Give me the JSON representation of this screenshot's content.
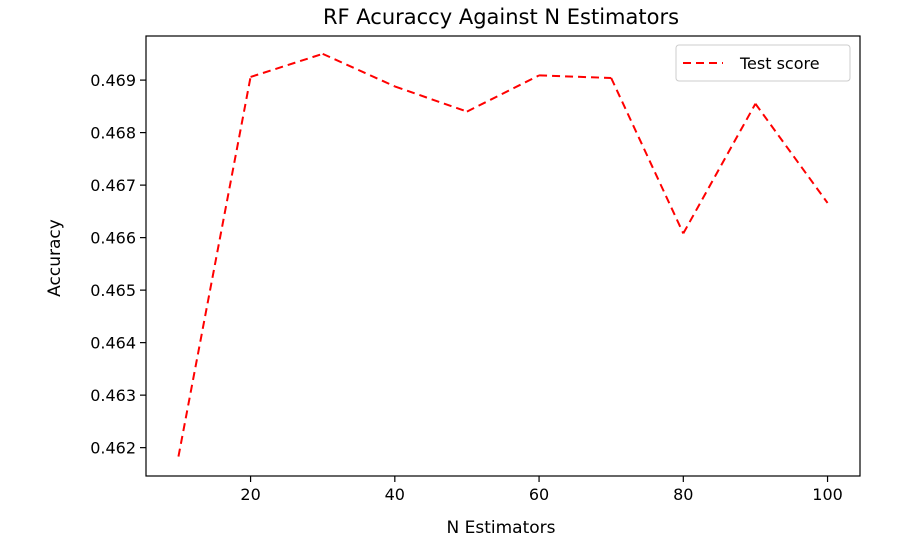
{
  "chart_data": {
    "type": "line",
    "title": "RF Acuraccy Against N Estimators",
    "xlabel": "N Estimators",
    "ylabel": "Accuracy",
    "xlim": [
      5.5,
      104.5
    ],
    "ylim": [
      0.46146,
      0.46984
    ],
    "x_ticks": [
      20,
      40,
      60,
      80,
      100
    ],
    "x_tick_labels": [
      "20",
      "40",
      "60",
      "80",
      "100"
    ],
    "y_ticks": [
      0.462,
      0.463,
      0.464,
      0.465,
      0.466,
      0.467,
      0.468,
      0.469
    ],
    "y_tick_labels": [
      "0.462",
      "0.463",
      "0.464",
      "0.465",
      "0.466",
      "0.467",
      "0.468",
      "0.469"
    ],
    "grid": false,
    "legend_position": "top-right",
    "series": [
      {
        "name": "Test score",
        "color": "#ff0000",
        "line_style": "dashed",
        "x": [
          10,
          20,
          30,
          40,
          50,
          60,
          70,
          80,
          90,
          100
        ],
        "y": [
          0.46183,
          0.46906,
          0.4695,
          0.46888,
          0.4684,
          0.46909,
          0.46904,
          0.46608,
          0.46855,
          0.46666
        ]
      }
    ]
  }
}
